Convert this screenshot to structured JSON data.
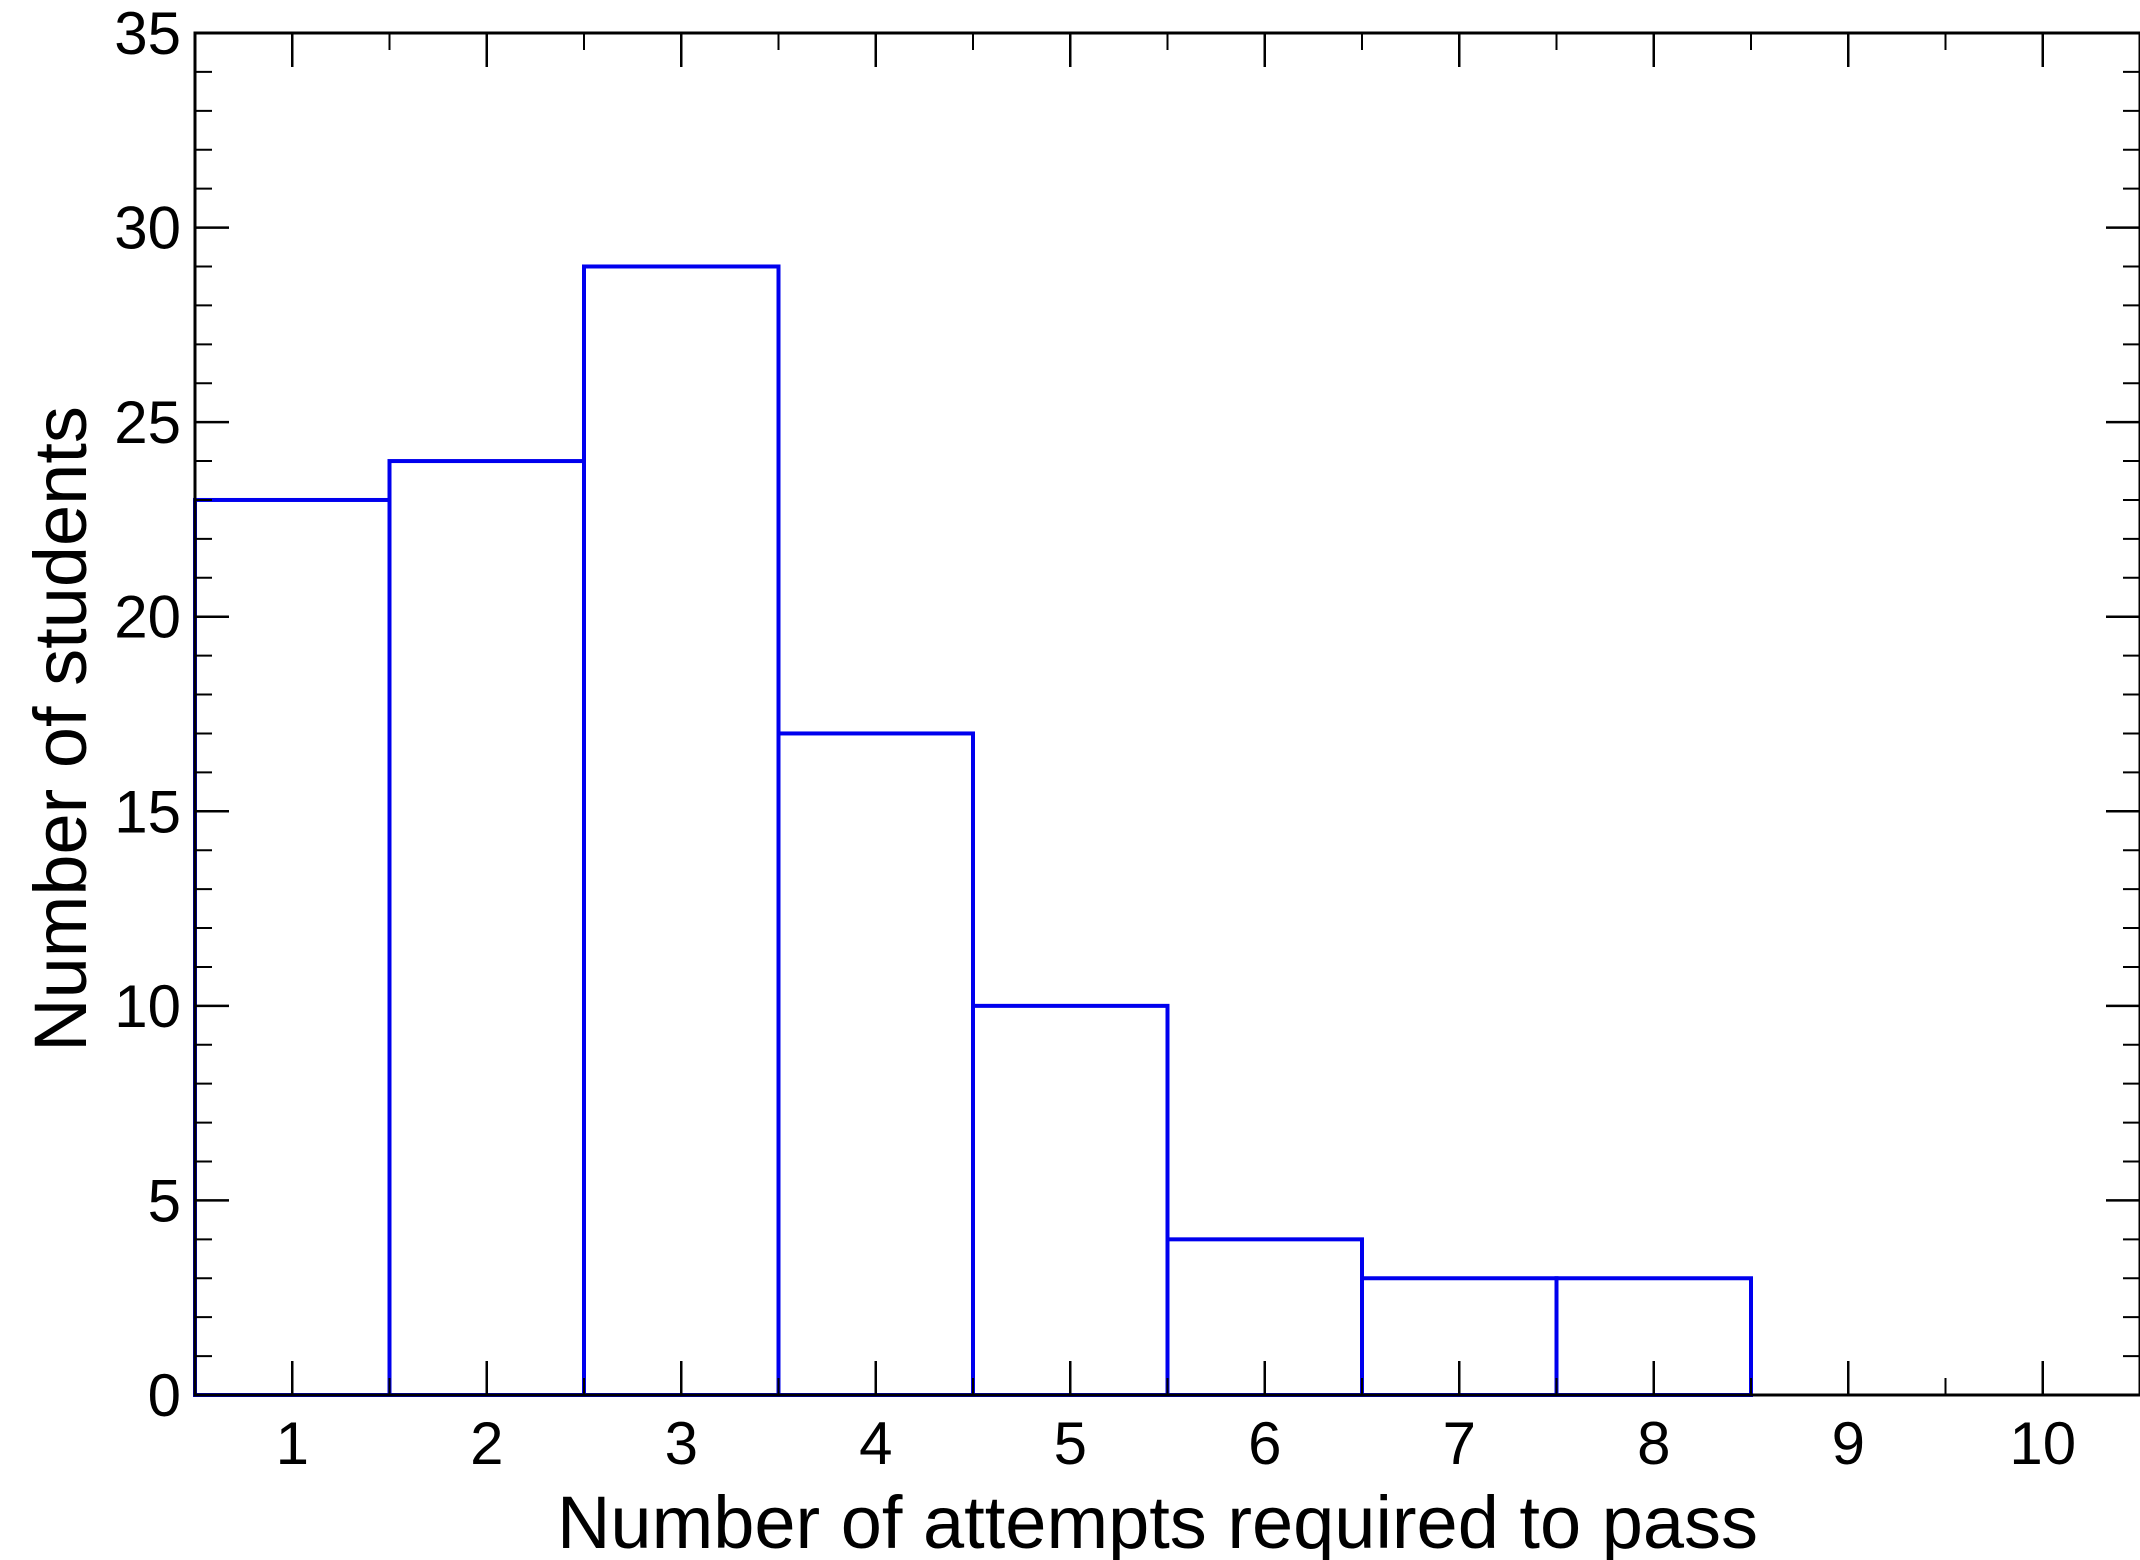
{
  "chart_data": {
    "type": "bar",
    "subtype": "step-histogram",
    "title": "",
    "xlabel": "Number of attempts required to pass",
    "ylabel": "Number of students",
    "categories": [
      1,
      2,
      3,
      4,
      5,
      6,
      7,
      8,
      9,
      10
    ],
    "values": [
      23,
      24,
      29,
      17,
      10,
      4,
      3,
      3,
      0,
      0
    ],
    "xlim": [
      0.5,
      10.5
    ],
    "ylim": [
      0,
      35
    ],
    "xticks": [
      1,
      2,
      3,
      4,
      5,
      6,
      7,
      8,
      9,
      10
    ],
    "yticks": [
      0,
      5,
      10,
      15,
      20,
      25,
      30,
      35
    ],
    "y_minor_step": 1,
    "grid": false,
    "legend": "none",
    "colors": {
      "bars": "#0000ee",
      "axes": "#000000",
      "background": "#ffffff"
    }
  }
}
